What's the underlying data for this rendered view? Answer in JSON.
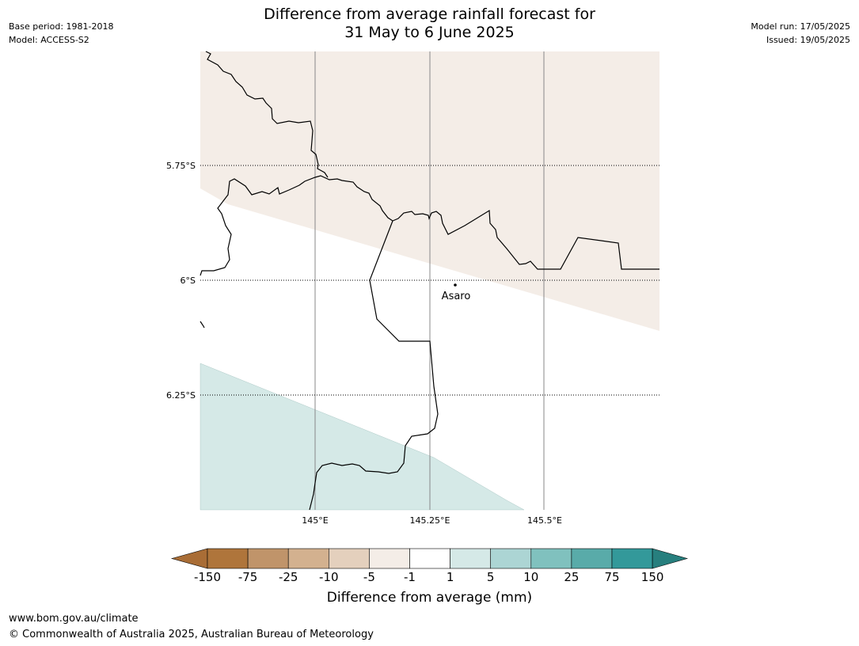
{
  "header": {
    "title_line1": "Difference from average rainfall forecast for",
    "title_line2": "31 May to 6 June 2025",
    "base_period": "Base period: 1981-2018",
    "model": "Model: ACCESS-S2",
    "model_run": "Model run: 17/05/2025",
    "issued": "Issued: 19/05/2025"
  },
  "map": {
    "lat_labels": [
      "5.75°S",
      "6°S",
      "6.25°S"
    ],
    "lon_labels": [
      "145°E",
      "145.25°E",
      "145.5°E"
    ],
    "place": "Asaro",
    "colors": {
      "dry_light": "#f4ede7",
      "wet_light": "#d5e9e7",
      "gridline_lon": "#888888",
      "boundary": "#000000"
    }
  },
  "colorbar": {
    "title": "Difference from average (mm)",
    "tick_labels": [
      "-150",
      "-75",
      "-25",
      "-10",
      "-5",
      "-1",
      "1",
      "5",
      "10",
      "25",
      "75",
      "150"
    ],
    "colors": [
      "#a96d36",
      "#af753b",
      "#c0946a",
      "#d3b18f",
      "#e4d0bd",
      "#f4ede7",
      "#ffffff",
      "#d5e9e7",
      "#acd5d4",
      "#80c1be",
      "#59aba9",
      "#33999a",
      "#277f7e"
    ]
  },
  "footer": {
    "url": "www.bom.gov.au/climate",
    "copyright": "© Commonwealth of Australia 2025, Australian Bureau of Meteorology"
  }
}
